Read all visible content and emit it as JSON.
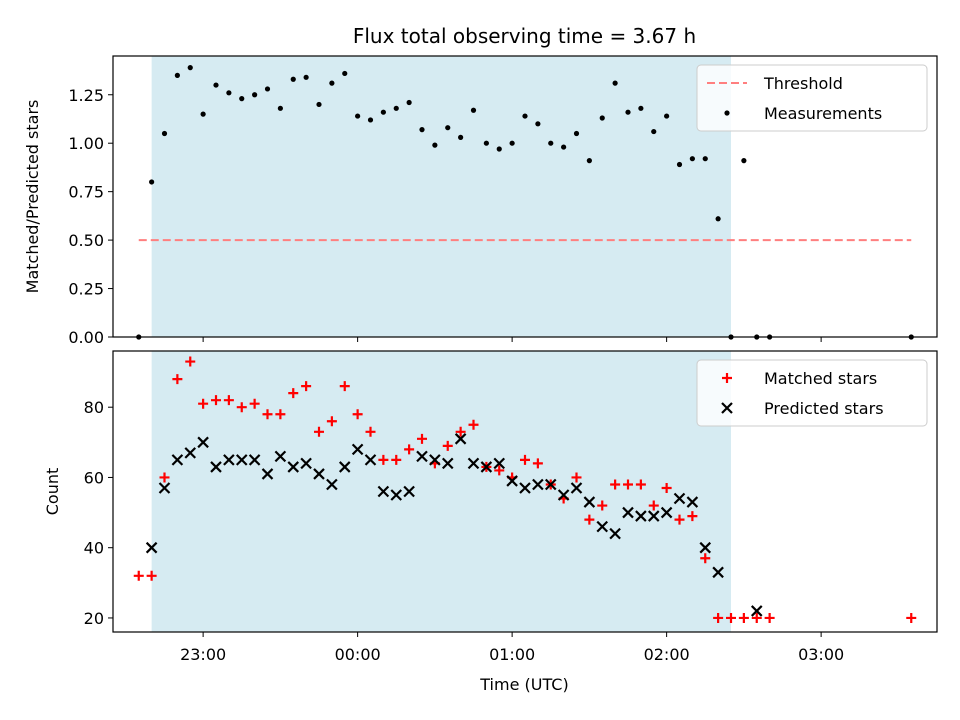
{
  "chart_data": {
    "title": "Flux total observing time = 3.67 h",
    "xlabel": "Time (UTC)",
    "xlim": [
      "2025-01-01T22:25",
      "2025-01-02T03:45"
    ],
    "x_ticks": [
      "23:00",
      "00:00",
      "01:00",
      "02:00",
      "03:00"
    ],
    "observing_window": [
      "2025-01-01T22:40",
      "2025-01-02T02:25"
    ],
    "colors": {
      "window": "#add8e6",
      "threshold": "#ff7f7f",
      "measurements": "#000000",
      "matched": "#ff0000",
      "predicted": "#000000"
    },
    "panels": [
      {
        "type": "scatter",
        "ylabel": "Matched/Predicted stars",
        "ylim": [
          0,
          1.45
        ],
        "y_ticks": [
          "0.00",
          "0.25",
          "0.50",
          "0.75",
          "1.00",
          "1.25"
        ],
        "legend_position": "top-right",
        "threshold": {
          "name": "Threshold",
          "value": 0.5,
          "x_range": [
            "2025-01-01T22:35",
            "2025-01-02T03:35"
          ]
        },
        "series": [
          {
            "name": "Measurements",
            "marker": "dot",
            "points": [
              [
                "2025-01-01T22:35",
                0.0
              ],
              [
                "2025-01-01T22:40",
                0.8
              ],
              [
                "2025-01-01T22:45",
                1.05
              ],
              [
                "2025-01-01T22:50",
                1.35
              ],
              [
                "2025-01-01T22:55",
                1.39
              ],
              [
                "2025-01-01T23:00",
                1.15
              ],
              [
                "2025-01-01T23:05",
                1.3
              ],
              [
                "2025-01-01T23:10",
                1.26
              ],
              [
                "2025-01-01T23:15",
                1.23
              ],
              [
                "2025-01-01T23:20",
                1.25
              ],
              [
                "2025-01-01T23:25",
                1.28
              ],
              [
                "2025-01-01T23:30",
                1.18
              ],
              [
                "2025-01-01T23:35",
                1.33
              ],
              [
                "2025-01-01T23:40",
                1.34
              ],
              [
                "2025-01-01T23:45",
                1.2
              ],
              [
                "2025-01-01T23:50",
                1.31
              ],
              [
                "2025-01-01T23:55",
                1.36
              ],
              [
                "2025-01-02T00:00",
                1.14
              ],
              [
                "2025-01-02T00:05",
                1.12
              ],
              [
                "2025-01-02T00:10",
                1.16
              ],
              [
                "2025-01-02T00:15",
                1.18
              ],
              [
                "2025-01-02T00:20",
                1.21
              ],
              [
                "2025-01-02T00:25",
                1.07
              ],
              [
                "2025-01-02T00:30",
                0.99
              ],
              [
                "2025-01-02T00:35",
                1.08
              ],
              [
                "2025-01-02T00:40",
                1.03
              ],
              [
                "2025-01-02T00:45",
                1.17
              ],
              [
                "2025-01-02T00:50",
                1.0
              ],
              [
                "2025-01-02T00:55",
                0.97
              ],
              [
                "2025-01-02T01:00",
                1.0
              ],
              [
                "2025-01-02T01:05",
                1.14
              ],
              [
                "2025-01-02T01:10",
                1.1
              ],
              [
                "2025-01-02T01:15",
                1.0
              ],
              [
                "2025-01-02T01:20",
                0.98
              ],
              [
                "2025-01-02T01:25",
                1.05
              ],
              [
                "2025-01-02T01:30",
                0.91
              ],
              [
                "2025-01-02T01:35",
                1.13
              ],
              [
                "2025-01-02T01:40",
                1.31
              ],
              [
                "2025-01-02T01:45",
                1.16
              ],
              [
                "2025-01-02T01:50",
                1.18
              ],
              [
                "2025-01-02T01:55",
                1.06
              ],
              [
                "2025-01-02T02:00",
                1.14
              ],
              [
                "2025-01-02T02:05",
                0.89
              ],
              [
                "2025-01-02T02:10",
                0.92
              ],
              [
                "2025-01-02T02:15",
                0.92
              ],
              [
                "2025-01-02T02:20",
                0.61
              ],
              [
                "2025-01-02T02:25",
                0.0
              ],
              [
                "2025-01-02T02:30",
                0.91
              ],
              [
                "2025-01-02T02:35",
                0.0
              ],
              [
                "2025-01-02T02:40",
                0.0
              ],
              [
                "2025-01-02T03:35",
                0.0
              ]
            ]
          }
        ]
      },
      {
        "type": "scatter",
        "ylabel": "Count",
        "ylim": [
          16,
          96
        ],
        "y_ticks": [
          "20",
          "40",
          "60",
          "80"
        ],
        "legend_position": "top-right",
        "series": [
          {
            "name": "Matched stars",
            "marker": "plus",
            "points": [
              [
                "2025-01-01T22:35",
                32
              ],
              [
                "2025-01-01T22:40",
                32
              ],
              [
                "2025-01-01T22:45",
                60
              ],
              [
                "2025-01-01T22:50",
                88
              ],
              [
                "2025-01-01T22:55",
                93
              ],
              [
                "2025-01-01T23:00",
                81
              ],
              [
                "2025-01-01T23:05",
                82
              ],
              [
                "2025-01-01T23:10",
                82
              ],
              [
                "2025-01-01T23:15",
                80
              ],
              [
                "2025-01-01T23:20",
                81
              ],
              [
                "2025-01-01T23:25",
                78
              ],
              [
                "2025-01-01T23:30",
                78
              ],
              [
                "2025-01-01T23:35",
                84
              ],
              [
                "2025-01-01T23:40",
                86
              ],
              [
                "2025-01-01T23:45",
                73
              ],
              [
                "2025-01-01T23:50",
                76
              ],
              [
                "2025-01-01T23:55",
                86
              ],
              [
                "2025-01-02T00:00",
                78
              ],
              [
                "2025-01-02T00:05",
                73
              ],
              [
                "2025-01-02T00:10",
                65
              ],
              [
                "2025-01-02T00:15",
                65
              ],
              [
                "2025-01-02T00:20",
                68
              ],
              [
                "2025-01-02T00:25",
                71
              ],
              [
                "2025-01-02T00:30",
                64
              ],
              [
                "2025-01-02T00:35",
                69
              ],
              [
                "2025-01-02T00:40",
                73
              ],
              [
                "2025-01-02T00:45",
                75
              ],
              [
                "2025-01-02T00:50",
                63
              ],
              [
                "2025-01-02T00:55",
                62
              ],
              [
                "2025-01-02T01:00",
                60
              ],
              [
                "2025-01-02T01:05",
                65
              ],
              [
                "2025-01-02T01:10",
                64
              ],
              [
                "2025-01-02T01:15",
                58
              ],
              [
                "2025-01-02T01:20",
                54
              ],
              [
                "2025-01-02T01:25",
                60
              ],
              [
                "2025-01-02T01:30",
                48
              ],
              [
                "2025-01-02T01:35",
                52
              ],
              [
                "2025-01-02T01:40",
                58
              ],
              [
                "2025-01-02T01:45",
                58
              ],
              [
                "2025-01-02T01:50",
                58
              ],
              [
                "2025-01-02T01:55",
                52
              ],
              [
                "2025-01-02T02:00",
                57
              ],
              [
                "2025-01-02T02:05",
                48
              ],
              [
                "2025-01-02T02:10",
                49
              ],
              [
                "2025-01-02T02:15",
                37
              ],
              [
                "2025-01-02T02:20",
                20
              ],
              [
                "2025-01-02T02:25",
                20
              ],
              [
                "2025-01-02T02:30",
                20
              ],
              [
                "2025-01-02T02:35",
                20
              ],
              [
                "2025-01-02T02:40",
                20
              ],
              [
                "2025-01-02T03:35",
                20
              ]
            ]
          },
          {
            "name": "Predicted stars",
            "marker": "x",
            "points": [
              [
                "2025-01-01T22:40",
                40
              ],
              [
                "2025-01-01T22:45",
                57
              ],
              [
                "2025-01-01T22:50",
                65
              ],
              [
                "2025-01-01T22:55",
                67
              ],
              [
                "2025-01-01T23:00",
                70
              ],
              [
                "2025-01-01T23:05",
                63
              ],
              [
                "2025-01-01T23:10",
                65
              ],
              [
                "2025-01-01T23:15",
                65
              ],
              [
                "2025-01-01T23:20",
                65
              ],
              [
                "2025-01-01T23:25",
                61
              ],
              [
                "2025-01-01T23:30",
                66
              ],
              [
                "2025-01-01T23:35",
                63
              ],
              [
                "2025-01-01T23:40",
                64
              ],
              [
                "2025-01-01T23:45",
                61
              ],
              [
                "2025-01-01T23:50",
                58
              ],
              [
                "2025-01-01T23:55",
                63
              ],
              [
                "2025-01-02T00:00",
                68
              ],
              [
                "2025-01-02T00:05",
                65
              ],
              [
                "2025-01-02T00:10",
                56
              ],
              [
                "2025-01-02T00:15",
                55
              ],
              [
                "2025-01-02T00:20",
                56
              ],
              [
                "2025-01-02T00:25",
                66
              ],
              [
                "2025-01-02T00:30",
                65
              ],
              [
                "2025-01-02T00:35",
                64
              ],
              [
                "2025-01-02T00:40",
                71
              ],
              [
                "2025-01-02T00:45",
                64
              ],
              [
                "2025-01-02T00:50",
                63
              ],
              [
                "2025-01-02T00:55",
                64
              ],
              [
                "2025-01-02T01:00",
                59
              ],
              [
                "2025-01-02T01:05",
                57
              ],
              [
                "2025-01-02T01:10",
                58
              ],
              [
                "2025-01-02T01:15",
                58
              ],
              [
                "2025-01-02T01:20",
                55
              ],
              [
                "2025-01-02T01:25",
                57
              ],
              [
                "2025-01-02T01:30",
                53
              ],
              [
                "2025-01-02T01:35",
                46
              ],
              [
                "2025-01-02T01:40",
                44
              ],
              [
                "2025-01-02T01:45",
                50
              ],
              [
                "2025-01-02T01:50",
                49
              ],
              [
                "2025-01-02T01:55",
                49
              ],
              [
                "2025-01-02T02:00",
                50
              ],
              [
                "2025-01-02T02:05",
                54
              ],
              [
                "2025-01-02T02:10",
                53
              ],
              [
                "2025-01-02T02:15",
                40
              ],
              [
                "2025-01-02T02:20",
                33
              ],
              [
                "2025-01-02T02:35",
                22
              ]
            ]
          }
        ]
      }
    ]
  }
}
